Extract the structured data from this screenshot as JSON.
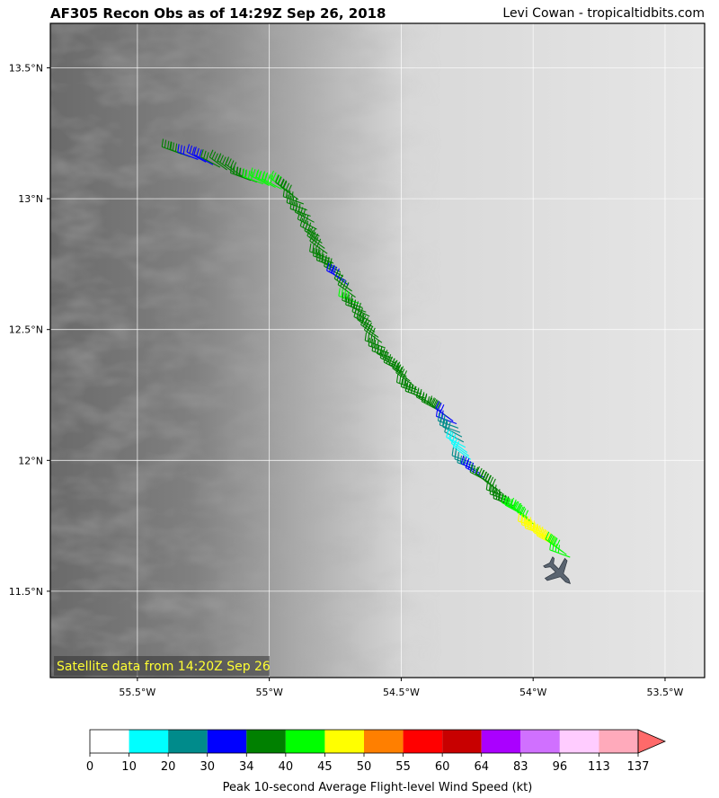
{
  "header": {
    "title": "AF305 Recon Obs as of 14:29Z Sep 26, 2018",
    "credit": "Levi Cowan - tropicaltidbits.com"
  },
  "map": {
    "satellite_note": "Satellite data from 14:20Z Sep 26",
    "lon_range": [
      -55.83,
      -53.35
    ],
    "lat_range": [
      11.17,
      13.67
    ],
    "lon_ticks": [
      {
        "value": -55.5,
        "label": "55.5°W"
      },
      {
        "value": -55.0,
        "label": "55°W"
      },
      {
        "value": -54.5,
        "label": "54.5°W"
      },
      {
        "value": -54.0,
        "label": "54°W"
      },
      {
        "value": -53.5,
        "label": "53.5°W"
      }
    ],
    "lat_ticks": [
      {
        "value": 13.5,
        "label": "13.5°N"
      },
      {
        "value": 13.0,
        "label": "13°N"
      },
      {
        "value": 12.5,
        "label": "12.5°N"
      },
      {
        "value": 12.0,
        "label": "12°N"
      },
      {
        "value": 11.5,
        "label": "11.5°N"
      }
    ],
    "aircraft_icon": "aircraft-icon",
    "aircraft_position": {
      "lon": -53.9,
      "lat": 11.57
    },
    "flight_track": [
      {
        "lon": -55.33,
        "lat": 13.17,
        "kt": 36
      },
      {
        "lon": -55.24,
        "lat": 13.14,
        "kt": 32
      },
      {
        "lon": -55.16,
        "lat": 13.11,
        "kt": 36
      },
      {
        "lon": -55.07,
        "lat": 13.07,
        "kt": 38
      },
      {
        "lon": -55.0,
        "lat": 13.05,
        "kt": 42
      },
      {
        "lon": -54.93,
        "lat": 13.03,
        "kt": 40
      },
      {
        "lon": -54.87,
        "lat": 12.98,
        "kt": 37
      },
      {
        "lon": -54.83,
        "lat": 12.91,
        "kt": 36
      },
      {
        "lon": -54.8,
        "lat": 12.83,
        "kt": 36
      },
      {
        "lon": -54.77,
        "lat": 12.77,
        "kt": 36
      },
      {
        "lon": -54.73,
        "lat": 12.72,
        "kt": 35
      },
      {
        "lon": -54.7,
        "lat": 12.67,
        "kt": 32
      },
      {
        "lon": -54.66,
        "lat": 12.6,
        "kt": 40
      },
      {
        "lon": -54.62,
        "lat": 12.55,
        "kt": 36
      },
      {
        "lon": -54.6,
        "lat": 12.49,
        "kt": 37
      },
      {
        "lon": -54.56,
        "lat": 12.43,
        "kt": 36
      },
      {
        "lon": -54.52,
        "lat": 12.37,
        "kt": 35
      },
      {
        "lon": -54.48,
        "lat": 12.32,
        "kt": 37
      },
      {
        "lon": -54.44,
        "lat": 12.27,
        "kt": 36
      },
      {
        "lon": -54.39,
        "lat": 12.22,
        "kt": 35
      },
      {
        "lon": -54.33,
        "lat": 12.17,
        "kt": 36
      },
      {
        "lon": -54.29,
        "lat": 12.14,
        "kt": 32
      },
      {
        "lon": -54.27,
        "lat": 12.09,
        "kt": 25
      },
      {
        "lon": -54.25,
        "lat": 12.03,
        "kt": 15
      },
      {
        "lon": -54.23,
        "lat": 11.99,
        "kt": 20
      },
      {
        "lon": -54.2,
        "lat": 11.95,
        "kt": 31
      },
      {
        "lon": -54.15,
        "lat": 11.9,
        "kt": 36
      },
      {
        "lon": -54.1,
        "lat": 11.86,
        "kt": 36
      },
      {
        "lon": -54.06,
        "lat": 11.81,
        "kt": 39
      },
      {
        "lon": -54.02,
        "lat": 11.78,
        "kt": 42
      },
      {
        "lon": -53.98,
        "lat": 11.74,
        "kt": 46
      },
      {
        "lon": -53.94,
        "lat": 11.7,
        "kt": 46
      },
      {
        "lon": -53.9,
        "lat": 11.66,
        "kt": 45
      },
      {
        "lon": -53.86,
        "lat": 11.63,
        "kt": 42
      }
    ]
  },
  "colorbar": {
    "label": "Peak 10-second Average Flight-level Wind Speed (kt)",
    "ticks": [
      "0",
      "10",
      "20",
      "30",
      "34",
      "40",
      "45",
      "50",
      "55",
      "60",
      "64",
      "83",
      "96",
      "113",
      "137"
    ],
    "colors": [
      "#ffffff",
      "#00ffff",
      "#008b8b",
      "#0000ff",
      "#008000",
      "#00ff00",
      "#ffff00",
      "#ff7f00",
      "#ff0000",
      "#c80000",
      "#aa00ff",
      "#d070ff",
      "#ffccff",
      "#ffaabb"
    ],
    "extend_color": "#ff6a6a"
  }
}
